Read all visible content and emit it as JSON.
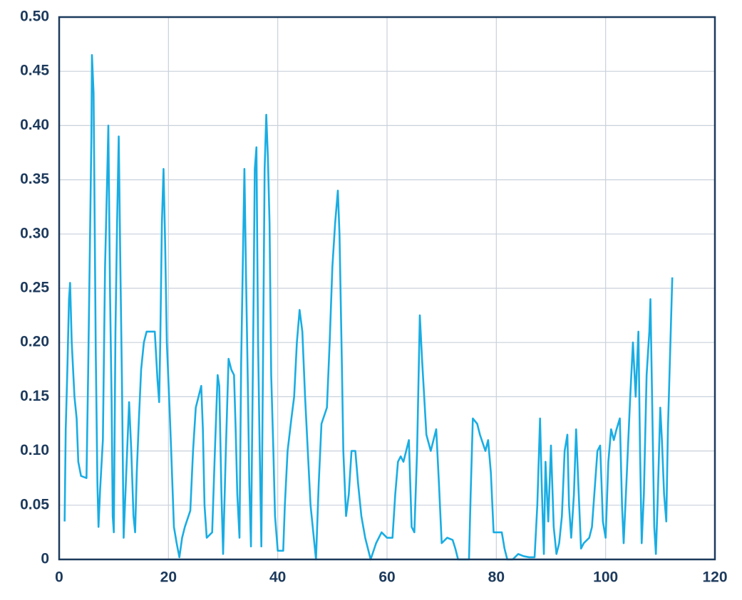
{
  "chart_data": {
    "type": "line",
    "color": "#19ade3",
    "grid": true,
    "x": [
      1.0,
      1.2,
      1.5,
      1.8,
      2.0,
      2.3,
      2.8,
      3.2,
      3.5,
      4,
      5,
      5.3,
      5.6,
      5.9,
      6.0,
      6.3,
      6.5,
      6.7,
      7.0,
      7.2,
      7.5,
      8.0,
      8.4,
      8.8,
      9.0,
      9.3,
      9.6,
      9.8,
      10.0,
      10.3,
      10.6,
      10.9,
      11.2,
      11.5,
      11.8,
      12.2,
      12.8,
      13.2,
      13.6,
      13.9,
      14.2,
      14.6,
      15,
      15.5,
      16,
      17.5,
      18,
      18.3,
      18.5,
      18.8,
      19.1,
      19.4,
      19.7,
      20.2,
      20.5,
      21,
      21.5,
      22,
      22.5,
      23,
      24,
      24.5,
      25,
      25.5,
      26,
      26.3,
      26.6,
      27,
      28,
      28.5,
      29,
      29.3,
      29.7,
      30,
      30.5,
      31,
      31.5,
      32,
      32.3,
      32.6,
      33,
      33.3,
      33.6,
      33.9,
      34.2,
      34.5,
      34.8,
      35.1,
      35.5,
      35.8,
      36.1,
      36.4,
      36.7,
      37,
      37.3,
      37.6,
      37.9,
      38.2,
      38.5,
      38.8,
      39.2,
      39.5,
      40,
      41,
      41.3,
      41.8,
      42.5,
      43,
      43.5,
      44,
      44.5,
      45,
      45.5,
      46,
      46.5,
      47,
      47.5,
      48,
      49,
      49.5,
      50,
      50.5,
      51,
      51.3,
      51.7,
      52,
      52.5,
      53,
      53.5,
      54.2,
      54.7,
      55.3,
      56,
      57,
      58,
      59,
      60,
      61,
      61.5,
      62,
      62.5,
      63,
      63.5,
      64,
      64.5,
      65,
      65.5,
      66,
      66.4,
      66.8,
      67.2,
      68,
      69,
      69.5,
      70,
      71,
      72,
      72.5,
      73,
      74,
      75,
      75.3,
      75.7,
      76.5,
      77,
      78,
      78.5,
      79,
      79.5,
      80,
      81,
      81.5,
      82,
      83,
      84,
      85,
      86,
      87,
      87.5,
      88,
      88.3,
      88.7,
      89,
      89.5,
      90,
      90.5,
      91,
      91.5,
      92,
      92.5,
      93,
      93.3,
      93.7,
      94.2,
      94.6,
      95,
      95.5,
      96,
      97,
      97.5,
      98.5,
      99,
      99.5,
      100,
      100.5,
      101,
      101.5,
      102,
      102.6,
      103,
      103.3,
      103.8,
      104.5,
      105,
      105.5,
      106,
      106.3,
      106.6,
      107,
      107.5,
      108,
      108.2,
      108.5,
      108.9,
      109.2,
      109.5,
      110,
      110.3,
      110.7,
      111.1,
      111.4,
      111.8,
      112.2
    ],
    "values": [
      0.035,
      0.12,
      0.175,
      0.24,
      0.255,
      0.2,
      0.15,
      0.13,
      0.09,
      0.077,
      0.075,
      0.17,
      0.28,
      0.39,
      0.465,
      0.43,
      0.31,
      0.19,
      0.07,
      0.03,
      0.065,
      0.11,
      0.27,
      0.355,
      0.4,
      0.25,
      0.145,
      0.04,
      0.025,
      0.21,
      0.31,
      0.39,
      0.27,
      0.16,
      0.02,
      0.07,
      0.145,
      0.1,
      0.04,
      0.025,
      0.08,
      0.13,
      0.175,
      0.2,
      0.21,
      0.21,
      0.165,
      0.145,
      0.2,
      0.31,
      0.36,
      0.29,
      0.2,
      0.14,
      0.1,
      0.03,
      0.015,
      0.002,
      0.02,
      0.03,
      0.045,
      0.1,
      0.14,
      0.15,
      0.16,
      0.12,
      0.05,
      0.02,
      0.025,
      0.1,
      0.17,
      0.16,
      0.06,
      0.005,
      0.1,
      0.185,
      0.175,
      0.17,
      0.12,
      0.06,
      0.02,
      0.18,
      0.27,
      0.36,
      0.26,
      0.17,
      0.07,
      0.012,
      0.2,
      0.36,
      0.38,
      0.2,
      0.1,
      0.012,
      0.18,
      0.36,
      0.41,
      0.37,
      0.31,
      0.17,
      0.1,
      0.04,
      0.008,
      0.008,
      0.05,
      0.1,
      0.13,
      0.15,
      0.2,
      0.23,
      0.21,
      0.15,
      0.1,
      0.05,
      0.025,
      0.0,
      0.07,
      0.125,
      0.14,
      0.2,
      0.27,
      0.31,
      0.34,
      0.3,
      0.19,
      0.1,
      0.04,
      0.06,
      0.1,
      0.1,
      0.07,
      0.04,
      0.02,
      0.0,
      0.015,
      0.025,
      0.02,
      0.02,
      0.06,
      0.09,
      0.095,
      0.09,
      0.1,
      0.11,
      0.03,
      0.025,
      0.1,
      0.225,
      0.185,
      0.15,
      0.115,
      0.1,
      0.12,
      0.07,
      0.015,
      0.02,
      0.018,
      0.01,
      0.0,
      0.0,
      0.0,
      0.06,
      0.13,
      0.125,
      0.115,
      0.1,
      0.11,
      0.08,
      0.025,
      0.025,
      0.025,
      0.01,
      0.0,
      0.0,
      0.005,
      0.003,
      0.002,
      0.002,
      0.05,
      0.13,
      0.07,
      0.005,
      0.09,
      0.035,
      0.105,
      0.03,
      0.005,
      0.015,
      0.04,
      0.1,
      0.115,
      0.05,
      0.02,
      0.06,
      0.12,
      0.07,
      0.01,
      0.015,
      0.02,
      0.03,
      0.1,
      0.105,
      0.035,
      0.02,
      0.09,
      0.12,
      0.11,
      0.12,
      0.13,
      0.05,
      0.015,
      0.07,
      0.15,
      0.2,
      0.15,
      0.21,
      0.1,
      0.015,
      0.06,
      0.17,
      0.21,
      0.24,
      0.15,
      0.03,
      0.005,
      0.05,
      0.14,
      0.11,
      0.06,
      0.035,
      0.12,
      0.19,
      0.26
    ],
    "xlim": [
      0,
      120
    ],
    "xticks": [
      0,
      20,
      40,
      60,
      80,
      100,
      120
    ],
    "ylim": [
      0,
      0.5
    ],
    "yticks": [
      0,
      0.05,
      {
        "value": 0.1,
        "label": "0.10"
      },
      0.15,
      {
        "value": 0.2,
        "label": "0.20"
      },
      0.25,
      {
        "value": 0.3,
        "label": "0.30"
      },
      0.35,
      {
        "value": 0.4,
        "label": "0.40"
      },
      0.45,
      {
        "value": 0.5,
        "label": "0.50"
      }
    ]
  }
}
